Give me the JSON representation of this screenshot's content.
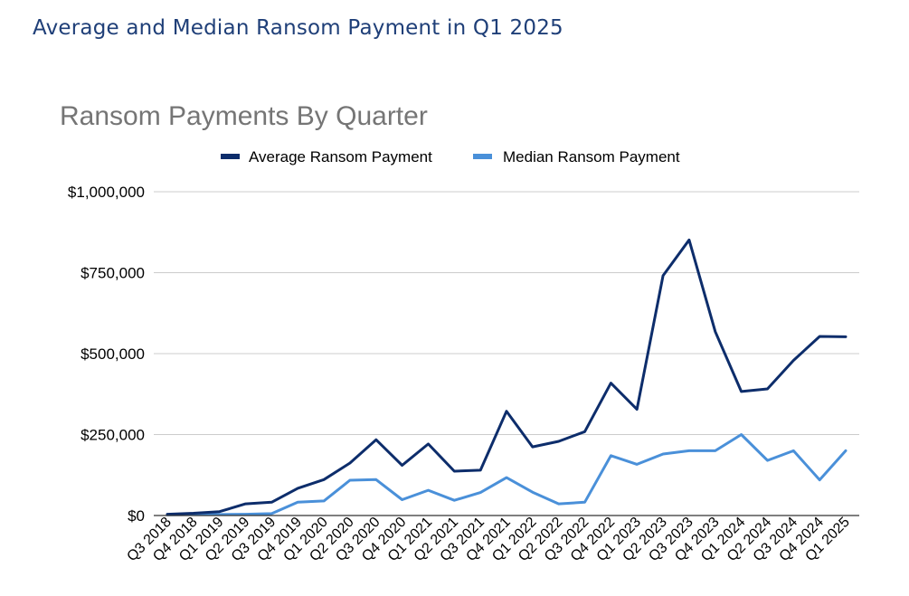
{
  "page": {
    "heading": "Average and Median Ransom Payment in Q1 2025"
  },
  "colors": {
    "heading": "#1f3f78",
    "chart_title": "#757575",
    "average": "#0d2d6b",
    "median": "#4a90d9",
    "grid": "#cccccc",
    "axis": "#333333",
    "text": "#000000"
  },
  "chart_data": {
    "type": "line",
    "title": "Ransom Payments By Quarter",
    "xlabel": "",
    "ylabel": "",
    "legend_position": "top",
    "grid": true,
    "ylim": [
      0,
      1000000
    ],
    "yticks": [
      0,
      250000,
      500000,
      750000,
      1000000
    ],
    "ytick_labels": [
      "$0",
      "$250,000",
      "$500,000",
      "$750,000",
      "$1,000,000"
    ],
    "categories": [
      "Q3 2018",
      "Q4 2018",
      "Q1 2019",
      "Q2 2019",
      "Q3 2019",
      "Q4 2019",
      "Q1 2020",
      "Q2 2020",
      "Q3 2020",
      "Q4 2020",
      "Q1 2021",
      "Q2 2021",
      "Q3 2021",
      "Q4 2021",
      "Q1 2022",
      "Q2 2022",
      "Q3 2022",
      "Q4 2022",
      "Q1 2023",
      "Q2 2023",
      "Q3 2023",
      "Q4 2023",
      "Q1 2024",
      "Q2 2024",
      "Q3 2024",
      "Q4 2024",
      "Q1 2025"
    ],
    "series": [
      {
        "name": "Average Ransom Payment",
        "color": "#0d2d6b",
        "values": [
          4000,
          7000,
          12000,
          36000,
          41000,
          84000,
          111000,
          162000,
          234000,
          155000,
          221000,
          137000,
          140000,
          322000,
          212000,
          229000,
          259000,
          409000,
          328000,
          741000,
          851000,
          568000,
          383000,
          391000,
          479000,
          553000,
          552000
        ]
      },
      {
        "name": "Median Ransom Payment",
        "color": "#4a90d9",
        "values": [
          2000,
          3000,
          3000,
          4000,
          6000,
          41000,
          45000,
          109000,
          111000,
          49000,
          78000,
          47000,
          71000,
          117000,
          72000,
          36000,
          41000,
          185000,
          158000,
          190000,
          200000,
          200000,
          250000,
          170000,
          200000,
          110000,
          200000
        ]
      }
    ]
  }
}
